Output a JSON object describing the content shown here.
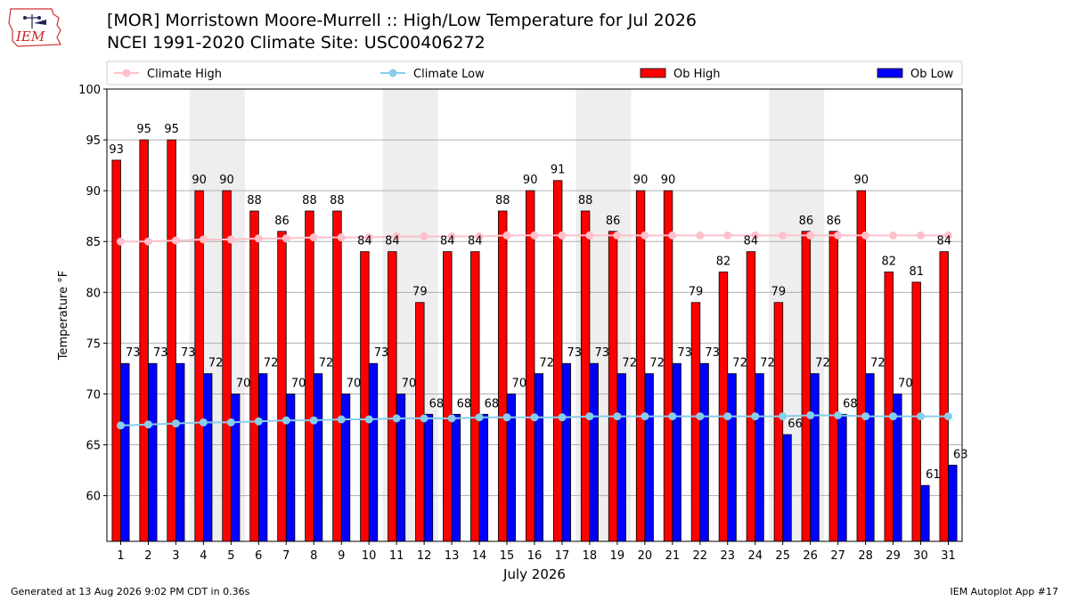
{
  "header": {
    "logo_text": "IEM",
    "title_line1": "[MOR] Morristown Moore-Murrell :: High/Low Temperature for Jul 2026",
    "title_line2": "NCEI 1991-2020 Climate Site: USC00406272"
  },
  "footer": {
    "generated": "Generated at 13 Aug 2026 9:02 PM CDT in 0.36s",
    "app": "IEM Autoplot App #17"
  },
  "colors": {
    "ob_high": "#ff0000",
    "ob_low": "#0000ff",
    "climate_high": "#ffc0cb",
    "climate_low": "#87ceeb",
    "weekend_shade": "#eeeeee",
    "grid": "#b0b0b0"
  },
  "chart_data": {
    "type": "bar",
    "xlabel": "July 2026",
    "ylabel": "Temperature °F",
    "ylim": [
      55.5,
      100
    ],
    "yticks": [
      60,
      65,
      70,
      75,
      80,
      85,
      90,
      95,
      100
    ],
    "grid": true,
    "legend_position": "top",
    "categories": [
      1,
      2,
      3,
      4,
      5,
      6,
      7,
      8,
      9,
      10,
      11,
      12,
      13,
      14,
      15,
      16,
      17,
      18,
      19,
      20,
      21,
      22,
      23,
      24,
      25,
      26,
      27,
      28,
      29,
      30,
      31
    ],
    "weekend_shaded_days": [
      [
        4,
        5
      ],
      [
        11,
        12
      ],
      [
        18,
        19
      ],
      [
        25,
        26
      ]
    ],
    "series": [
      {
        "name": "Ob High",
        "kind": "bar",
        "values": [
          93,
          95,
          95,
          90,
          90,
          88,
          86,
          88,
          88,
          84,
          84,
          79,
          84,
          84,
          88,
          90,
          91,
          88,
          86,
          90,
          90,
          79,
          82,
          84,
          79,
          86,
          86,
          90,
          82,
          81,
          84
        ]
      },
      {
        "name": "Ob Low",
        "kind": "bar",
        "values": [
          73,
          73,
          73,
          72,
          70,
          72,
          70,
          72,
          70,
          73,
          70,
          68,
          68,
          68,
          70,
          72,
          73,
          73,
          72,
          72,
          73,
          73,
          72,
          72,
          66,
          72,
          68,
          72,
          70,
          61,
          63
        ]
      },
      {
        "name": "Climate High",
        "kind": "line",
        "values": [
          85.0,
          85.0,
          85.1,
          85.2,
          85.2,
          85.3,
          85.3,
          85.4,
          85.4,
          85.4,
          85.5,
          85.5,
          85.5,
          85.5,
          85.6,
          85.6,
          85.6,
          85.6,
          85.6,
          85.6,
          85.6,
          85.6,
          85.6,
          85.6,
          85.6,
          85.6,
          85.6,
          85.6,
          85.6,
          85.6,
          85.6
        ]
      },
      {
        "name": "Climate Low",
        "kind": "line",
        "values": [
          66.9,
          67.0,
          67.1,
          67.2,
          67.2,
          67.3,
          67.4,
          67.4,
          67.5,
          67.5,
          67.6,
          67.6,
          67.6,
          67.7,
          67.7,
          67.7,
          67.7,
          67.8,
          67.8,
          67.8,
          67.8,
          67.8,
          67.8,
          67.8,
          67.8,
          67.9,
          67.9,
          67.8,
          67.8,
          67.8,
          67.8
        ]
      }
    ]
  }
}
